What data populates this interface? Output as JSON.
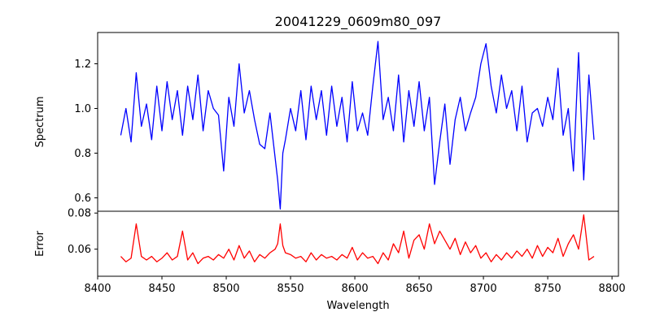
{
  "chart_data": {
    "title": "20041229_0609m80_097",
    "xlabel": "Wavelength",
    "x_range": [
      8400,
      8805
    ],
    "x_ticks": [
      8400,
      8450,
      8500,
      8550,
      8600,
      8650,
      8700,
      8750,
      8800
    ],
    "panels": [
      {
        "name": "spectrum",
        "type": "line",
        "ylabel": "Spectrum",
        "ylim": [
          0.54,
          1.34
        ],
        "y_ticks": [
          0.6,
          0.8,
          1.0,
          1.2
        ],
        "y_tick_labels": [
          "0.6",
          "0.8",
          "1.0",
          "1.2"
        ],
        "color": "#0000ff",
        "x": [
          8418,
          8422,
          8426,
          8430,
          8434,
          8438,
          8442,
          8446,
          8450,
          8454,
          8458,
          8462,
          8466,
          8470,
          8474,
          8478,
          8482,
          8486,
          8490,
          8494,
          8498,
          8502,
          8506,
          8510,
          8514,
          8518,
          8522,
          8526,
          8530,
          8534,
          8538,
          8540,
          8542,
          8544,
          8546,
          8550,
          8554,
          8558,
          8562,
          8566,
          8570,
          8574,
          8578,
          8582,
          8586,
          8590,
          8594,
          8598,
          8602,
          8606,
          8610,
          8614,
          8618,
          8622,
          8626,
          8630,
          8634,
          8638,
          8642,
          8646,
          8650,
          8654,
          8658,
          8662,
          8666,
          8670,
          8674,
          8678,
          8682,
          8686,
          8690,
          8694,
          8698,
          8702,
          8706,
          8710,
          8714,
          8718,
          8722,
          8726,
          8730,
          8734,
          8738,
          8742,
          8746,
          8750,
          8754,
          8758,
          8762,
          8766,
          8770,
          8774,
          8778,
          8782,
          8786
        ],
        "values": [
          0.88,
          1.0,
          0.85,
          1.16,
          0.92,
          1.02,
          0.86,
          1.1,
          0.9,
          1.12,
          0.95,
          1.08,
          0.88,
          1.1,
          0.95,
          1.15,
          0.9,
          1.08,
          1.0,
          0.97,
          0.72,
          1.05,
          0.92,
          1.2,
          0.98,
          1.08,
          0.95,
          0.84,
          0.82,
          0.98,
          0.78,
          0.68,
          0.55,
          0.8,
          0.86,
          1.0,
          0.9,
          1.08,
          0.86,
          1.1,
          0.95,
          1.08,
          0.88,
          1.1,
          0.92,
          1.05,
          0.85,
          1.12,
          0.9,
          0.98,
          0.88,
          1.1,
          1.3,
          0.95,
          1.05,
          0.9,
          1.15,
          0.85,
          1.08,
          0.92,
          1.12,
          0.9,
          1.05,
          0.66,
          0.85,
          1.02,
          0.75,
          0.95,
          1.05,
          0.9,
          0.98,
          1.05,
          1.2,
          1.29,
          1.1,
          0.98,
          1.15,
          1.0,
          1.08,
          0.9,
          1.1,
          0.85,
          0.98,
          1.0,
          0.92,
          1.05,
          0.95,
          1.18,
          0.88,
          1.0,
          0.72,
          1.25,
          0.68,
          1.15,
          0.86
        ]
      },
      {
        "name": "error",
        "type": "line",
        "ylabel": "Error",
        "ylim": [
          0.045,
          0.081
        ],
        "y_ticks": [
          0.06,
          0.08
        ],
        "y_tick_labels": [
          "0.06",
          "0.08"
        ],
        "color": "#ff0000",
        "x": [
          8418,
          8422,
          8426,
          8430,
          8434,
          8438,
          8442,
          8446,
          8450,
          8454,
          8458,
          8462,
          8466,
          8470,
          8474,
          8478,
          8482,
          8486,
          8490,
          8494,
          8498,
          8502,
          8506,
          8510,
          8514,
          8518,
          8522,
          8526,
          8530,
          8534,
          8538,
          8540,
          8542,
          8544,
          8546,
          8550,
          8554,
          8558,
          8562,
          8566,
          8570,
          8574,
          8578,
          8582,
          8586,
          8590,
          8594,
          8598,
          8602,
          8606,
          8610,
          8614,
          8618,
          8622,
          8626,
          8630,
          8634,
          8638,
          8642,
          8646,
          8650,
          8654,
          8658,
          8662,
          8666,
          8670,
          8674,
          8678,
          8682,
          8686,
          8690,
          8694,
          8698,
          8702,
          8706,
          8710,
          8714,
          8718,
          8722,
          8726,
          8730,
          8734,
          8738,
          8742,
          8746,
          8750,
          8754,
          8758,
          8762,
          8766,
          8770,
          8774,
          8778,
          8782,
          8786
        ],
        "values": [
          0.056,
          0.053,
          0.055,
          0.074,
          0.056,
          0.054,
          0.056,
          0.053,
          0.055,
          0.058,
          0.054,
          0.056,
          0.07,
          0.054,
          0.058,
          0.052,
          0.055,
          0.056,
          0.054,
          0.057,
          0.055,
          0.06,
          0.054,
          0.062,
          0.055,
          0.059,
          0.053,
          0.057,
          0.055,
          0.058,
          0.06,
          0.063,
          0.074,
          0.062,
          0.058,
          0.057,
          0.055,
          0.056,
          0.053,
          0.058,
          0.054,
          0.057,
          0.055,
          0.056,
          0.054,
          0.057,
          0.055,
          0.061,
          0.054,
          0.058,
          0.055,
          0.056,
          0.052,
          0.058,
          0.054,
          0.063,
          0.058,
          0.07,
          0.055,
          0.065,
          0.068,
          0.06,
          0.074,
          0.063,
          0.07,
          0.065,
          0.06,
          0.066,
          0.057,
          0.064,
          0.058,
          0.062,
          0.055,
          0.058,
          0.053,
          0.057,
          0.054,
          0.058,
          0.055,
          0.059,
          0.056,
          0.06,
          0.055,
          0.062,
          0.056,
          0.061,
          0.058,
          0.066,
          0.056,
          0.063,
          0.068,
          0.06,
          0.079,
          0.054,
          0.056
        ]
      }
    ]
  }
}
